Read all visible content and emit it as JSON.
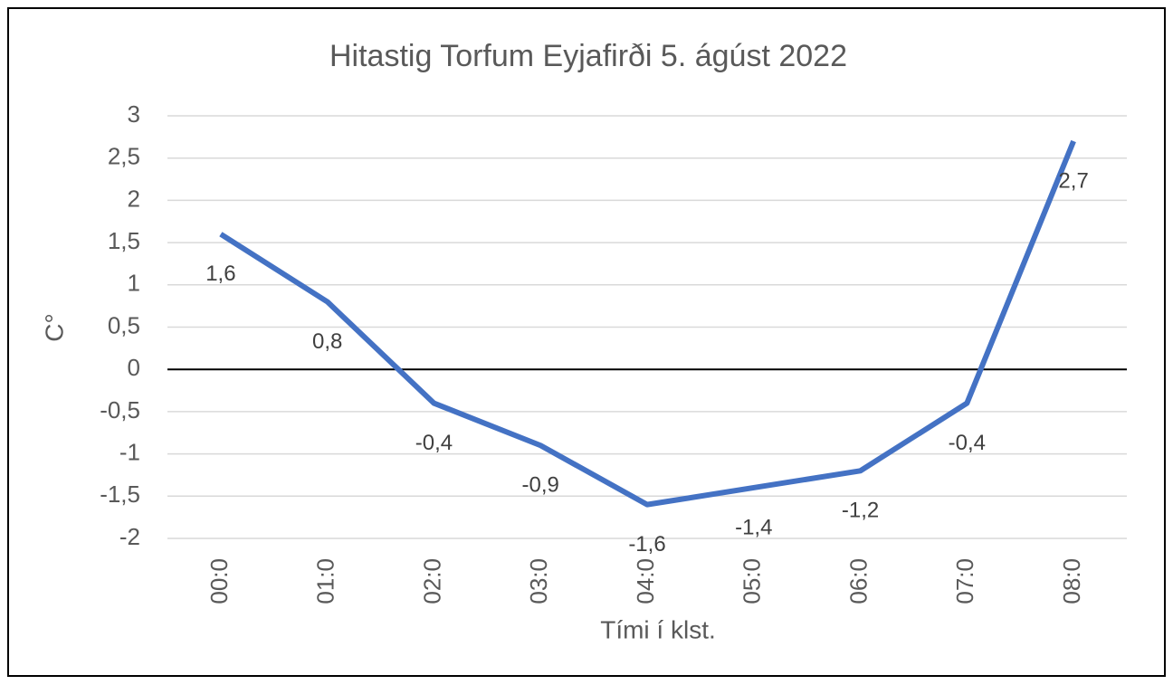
{
  "chart_data": {
    "type": "line",
    "title": "Hitastig Torfum Eyjafirði 5. ágúst 2022",
    "x_label": "Tími í klst.",
    "y_label": "C°",
    "categories": [
      "00:0",
      "01:0",
      "02:0",
      "03:0",
      "04:0",
      "05:0",
      "06:0",
      "07:0",
      "08:0"
    ],
    "series": [
      {
        "name": "Hitastig",
        "color": "#4472c4",
        "values": [
          1.6,
          0.8,
          -0.4,
          -0.9,
          -1.6,
          -1.4,
          -1.2,
          -0.4,
          2.7
        ],
        "value_labels": [
          "1,6",
          "0,8",
          "-0,4",
          "-0,9",
          "-1,6",
          "-1,4",
          "-1,2",
          "-0,4",
          "2,7"
        ]
      }
    ],
    "ylim": [
      -2,
      3
    ],
    "yticks": [
      -2,
      {
        "value": -1.5,
        "label": "-1,5"
      },
      -1,
      {
        "value": -0.5,
        "label": "-0,5"
      },
      0,
      {
        "value": 0.5,
        "label": "0,5"
      },
      1,
      {
        "value": 1.5,
        "label": "1,5"
      },
      2,
      {
        "value": 2.5,
        "label": "2,5"
      },
      3
    ],
    "grid": true
  }
}
